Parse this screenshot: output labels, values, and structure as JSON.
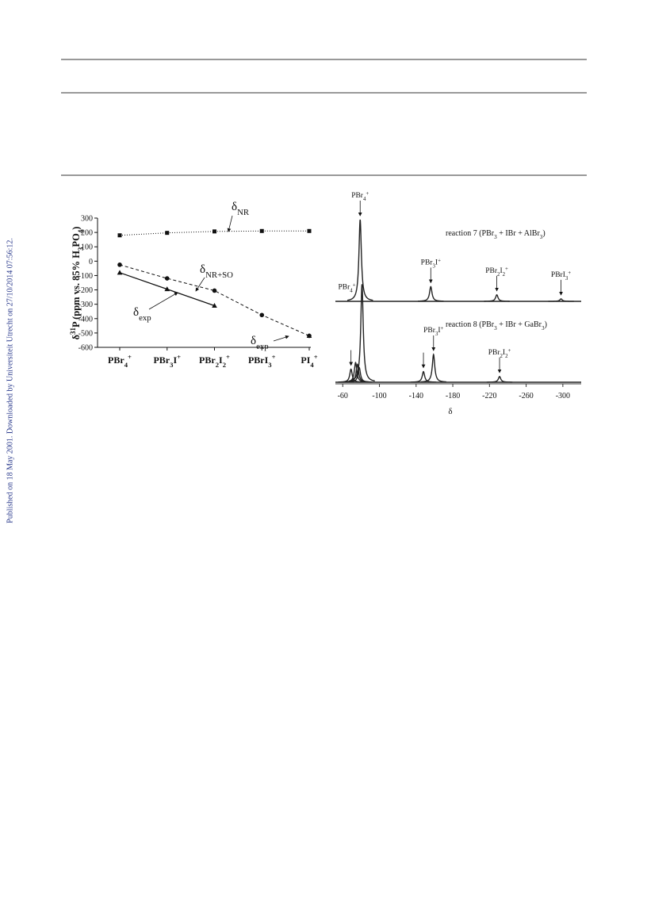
{
  "side_note": "Published on 18 May 2001. Downloaded by Universiteit Utrecht on 27/10/2014 07:56:12.",
  "chart_data": [
    {
      "type": "line",
      "categories": [
        "PBr4+",
        "PBr3I+",
        "PBr2I2+",
        "PBrI3+",
        "PI4+"
      ],
      "y_label": "δ31P (ppm vs. 85% H3PO4)",
      "ylim": [
        -600,
        300
      ],
      "yticks": [
        -600,
        -500,
        -400,
        -300,
        -200,
        -100,
        0,
        100,
        200,
        300
      ],
      "series": [
        {
          "name": "δNR",
          "color": "#111111",
          "marker": "square",
          "dash": "dotted",
          "values": [
            180,
            197,
            207,
            210,
            210
          ]
        },
        {
          "name": "δNR+SO",
          "color": "#111111",
          "marker": "circle",
          "dash": "dashed",
          "values": [
            -25,
            -120,
            -205,
            -375,
            -520
          ]
        },
        {
          "name": "δexp",
          "color": "#111111",
          "marker": "triangle",
          "dash": "solid",
          "values": [
            -80,
            -195,
            -310,
            null,
            -520
          ]
        }
      ]
    },
    {
      "type": "spectrum",
      "x_label": "δ",
      "xlim": [
        -52,
        -320
      ],
      "xticks": [
        -60,
        -100,
        -140,
        -180,
        -220,
        -260,
        -300
      ],
      "series": [
        {
          "name": "reaction 7 (PBr3 + IBr + AlBr3)",
          "color": "#222222",
          "peaks": [
            {
              "x": -79,
              "height": 100,
              "label": "PBr4+",
              "arrow": true
            },
            {
              "x": -156,
              "height": 18,
              "label": "PBr3I+",
              "arrow": true
            },
            {
              "x": -228,
              "height": 8,
              "label": "PBr2I2+",
              "arrow": true
            },
            {
              "x": -298,
              "height": 3,
              "label": "PBrI3+",
              "arrow": true
            }
          ]
        },
        {
          "name": "reaction 8 (PBr3 + IBr + GaBr3)",
          "color": "#222222",
          "peaks": [
            {
              "x": -69,
              "height": 16,
              "arrow": true
            },
            {
              "x": -74,
              "height": 24
            },
            {
              "x": -76,
              "height": 22
            },
            {
              "x": -78,
              "height": 18
            },
            {
              "x": -81,
              "height": 120,
              "label": "PBr4+"
            },
            {
              "x": -148,
              "height": 13,
              "arrow": true
            },
            {
              "x": -159,
              "height": 34,
              "label": "PBr3I+",
              "arrow": true
            },
            {
              "x": -231,
              "height": 7,
              "label": "PBr2I2+",
              "arrow": true
            }
          ]
        }
      ]
    }
  ]
}
